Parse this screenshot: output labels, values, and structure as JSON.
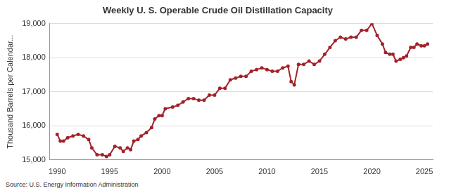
{
  "chart_data": {
    "type": "line",
    "title": "Weekly U. S. Operable Crude Oil Distillation Capacity",
    "y_label": "Thousand Barrels per Calendar...",
    "note": "Source: U.S. Energy Information Administration",
    "color": "#a3222a",
    "marker": "circle",
    "grid": "y",
    "xlim": [
      1989.3,
      2025.8
    ],
    "xticks": [
      1990,
      1995,
      2000,
      2005,
      2010,
      2015,
      2020,
      2025
    ],
    "ylim": [
      15000,
      19000
    ],
    "yticks": [
      {
        "value": 15000,
        "label": "15,000"
      },
      {
        "value": 16000,
        "label": "16,000"
      },
      {
        "value": 17000,
        "label": "17,000"
      },
      {
        "value": 18000,
        "label": "18,000"
      },
      {
        "value": 19000,
        "label": "19,000"
      }
    ],
    "x": [
      1990.0,
      1990.3,
      1990.6,
      1991.0,
      1991.5,
      1992.0,
      1992.5,
      1993.0,
      1993.3,
      1993.8,
      1994.3,
      1994.7,
      1995.0,
      1995.5,
      1996.0,
      1996.3,
      1996.7,
      1997.0,
      1997.3,
      1997.7,
      1998.0,
      1998.5,
      1999.0,
      1999.3,
      1999.7,
      2000.0,
      2000.3,
      2001.0,
      2001.5,
      2002.0,
      2002.5,
      2003.0,
      2003.5,
      2004.0,
      2004.5,
      2005.0,
      2005.5,
      2006.0,
      2006.5,
      2007.0,
      2007.5,
      2008.0,
      2008.5,
      2009.0,
      2009.5,
      2010.0,
      2010.5,
      2011.0,
      2011.5,
      2012.0,
      2012.3,
      2012.6,
      2013.0,
      2013.5,
      2014.0,
      2014.5,
      2015.0,
      2015.5,
      2016.0,
      2016.5,
      2017.0,
      2017.5,
      2018.0,
      2018.5,
      2019.0,
      2019.5,
      2020.0,
      2020.5,
      2021.0,
      2021.3,
      2021.7,
      2022.0,
      2022.3,
      2022.7,
      2023.0,
      2023.3,
      2023.7,
      2024.0,
      2024.3,
      2024.7,
      2025.0,
      2025.3
    ],
    "values": [
      15750,
      15550,
      15550,
      15650,
      15700,
      15750,
      15700,
      15600,
      15350,
      15150,
      15150,
      15100,
      15150,
      15400,
      15350,
      15250,
      15350,
      15300,
      15550,
      15600,
      15700,
      15800,
      15950,
      16200,
      16300,
      16300,
      16500,
      16550,
      16600,
      16700,
      16800,
      16800,
      16750,
      16750,
      16900,
      16900,
      17100,
      17100,
      17350,
      17400,
      17450,
      17450,
      17600,
      17650,
      17700,
      17650,
      17600,
      17600,
      17700,
      17750,
      17300,
      17200,
      17800,
      17800,
      17900,
      17800,
      17900,
      18100,
      18300,
      18500,
      18600,
      18550,
      18600,
      18600,
      18800,
      18800,
      19000,
      18650,
      18400,
      18150,
      18100,
      18100,
      17900,
      17950,
      18000,
      18050,
      18300,
      18300,
      18400,
      18350,
      18350,
      18400
    ]
  }
}
